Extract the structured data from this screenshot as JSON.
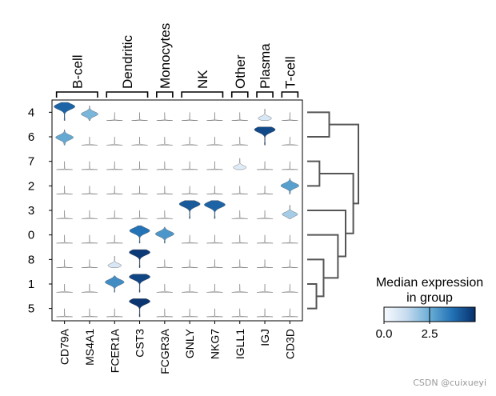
{
  "chart_data": {
    "type": "stacked-violin",
    "title": "",
    "groups": [
      "B-cell",
      "Dendritic",
      "Monocytes",
      "NK",
      "Other",
      "Plasma",
      "T-cell"
    ],
    "group_spans": [
      {
        "name": "B-cell",
        "genes": [
          "CD79A",
          "MS4A1"
        ]
      },
      {
        "name": "Dendritic",
        "genes": [
          "FCER1A",
          "CST3"
        ]
      },
      {
        "name": "Monocytes",
        "genes": [
          "FCGR3A"
        ]
      },
      {
        "name": "NK",
        "genes": [
          "GNLY",
          "NKG7"
        ]
      },
      {
        "name": "Other",
        "genes": [
          "IGLL1"
        ]
      },
      {
        "name": "Plasma",
        "genes": [
          "IGJ"
        ]
      },
      {
        "name": "T-cell",
        "genes": [
          "CD3D"
        ]
      }
    ],
    "genes": [
      "CD79A",
      "MS4A1",
      "FCER1A",
      "CST3",
      "FCGR3A",
      "GNLY",
      "NKG7",
      "IGLL1",
      "IGJ",
      "CD3D"
    ],
    "clusters": [
      "4",
      "6",
      "7",
      "2",
      "3",
      "0",
      "8",
      "1",
      "5"
    ],
    "median_expression": [
      [
        4.0,
        2.3,
        0.0,
        0.0,
        0.0,
        0.0,
        0.0,
        0.0,
        0.8,
        0.0
      ],
      [
        2.6,
        0.0,
        0.0,
        0.0,
        0.0,
        0.0,
        0.0,
        0.0,
        4.5,
        0.0
      ],
      [
        0.0,
        0.0,
        0.0,
        0.0,
        0.0,
        0.0,
        0.0,
        0.6,
        0.0,
        0.0
      ],
      [
        0.0,
        0.0,
        0.0,
        0.0,
        0.0,
        0.0,
        0.0,
        0.0,
        0.0,
        2.8
      ],
      [
        0.0,
        0.0,
        0.0,
        0.0,
        0.0,
        4.2,
        4.0,
        0.0,
        0.0,
        1.7
      ],
      [
        0.0,
        0.0,
        0.0,
        3.7,
        3.0,
        0.0,
        0.0,
        0.0,
        0.0,
        0.0
      ],
      [
        0.0,
        0.0,
        0.8,
        4.8,
        0.0,
        0.0,
        0.0,
        0.0,
        0.0,
        0.0
      ],
      [
        0.0,
        0.0,
        3.2,
        4.6,
        0.0,
        0.0,
        0.0,
        0.0,
        0.0,
        0.0
      ],
      [
        0.0,
        0.0,
        0.0,
        4.9,
        0.0,
        0.0,
        0.0,
        0.0,
        0.0,
        0.0
      ]
    ],
    "dendrogram": {
      "orientation": "right",
      "merges": [
        {
          "a": "7",
          "b": "2",
          "height": 0.24
        },
        {
          "a": "1",
          "b": "5",
          "height": 0.18
        },
        {
          "a": "8",
          "b": "1+5",
          "height": 0.32
        },
        {
          "a": "4",
          "b": "6",
          "height": 0.43
        },
        {
          "a": "0",
          "b": "8+1+5",
          "height": 0.6
        },
        {
          "a": "3",
          "b": "0+8+1+5",
          "height": 0.75
        },
        {
          "a": "7+2",
          "b": "3+0+8+1+5",
          "height": 0.9
        },
        {
          "a": "4+6",
          "b": "7+2+3+0+8+1+5",
          "height": 1.0
        }
      ]
    },
    "colorbar": {
      "title_line1": "Median expression",
      "title_line2": "in group",
      "ticks": [
        "0.0",
        "2.5"
      ],
      "range": [
        0,
        5
      ],
      "colormap": [
        "#f7fbff",
        "#c6dbef",
        "#6baed6",
        "#2171b5",
        "#08306b"
      ]
    }
  },
  "watermark": "CSDN @cuixueyi"
}
